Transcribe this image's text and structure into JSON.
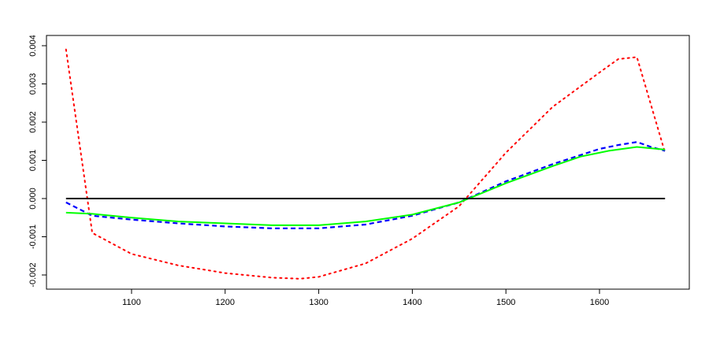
{
  "chart_data": {
    "type": "line",
    "title": "",
    "xlabel": "",
    "ylabel": "",
    "xlim": [
      1030,
      1670
    ],
    "ylim": [
      -0.0022,
      0.004
    ],
    "xticks": [
      1100,
      1200,
      1300,
      1400,
      1500,
      1600
    ],
    "xtick_labels": [
      "1100",
      "1200",
      "1300",
      "1400",
      "1500",
      "1600"
    ],
    "yticks": [
      -0.002,
      -0.001,
      0.0,
      0.001,
      0.002,
      0.003,
      0.004
    ],
    "ytick_labels": [
      "-0.002",
      "-0.001",
      "0.000",
      "0.001",
      "0.002",
      "0.003",
      "0.004"
    ],
    "grid": false,
    "legend": "none",
    "series": [
      {
        "color": "#ff0000",
        "style": "dotted",
        "x": [
          1030,
          1058,
          1100,
          1150,
          1200,
          1250,
          1280,
          1300,
          1350,
          1400,
          1450,
          1500,
          1550,
          1600,
          1620,
          1640,
          1670
        ],
        "y": [
          0.0039,
          -0.0009,
          -0.00145,
          -0.00175,
          -0.00195,
          -0.00207,
          -0.0021,
          -0.00205,
          -0.0017,
          -0.00105,
          -0.0002,
          0.0012,
          0.0024,
          0.0033,
          0.00365,
          0.0037,
          0.0012
        ]
      },
      {
        "color": "#0000ff",
        "style": "dashed",
        "x": [
          1030,
          1058,
          1100,
          1150,
          1200,
          1250,
          1300,
          1350,
          1400,
          1450,
          1500,
          1550,
          1600,
          1620,
          1640,
          1655,
          1670
        ],
        "y": [
          -0.0001,
          -0.00045,
          -0.00055,
          -0.00065,
          -0.00073,
          -0.00078,
          -0.00078,
          -0.00068,
          -0.00045,
          -0.0001,
          0.00045,
          0.0009,
          0.0013,
          0.0014,
          0.00148,
          0.00135,
          0.00125
        ]
      },
      {
        "color": "#00ff00",
        "style": "solid",
        "x": [
          1030,
          1058,
          1100,
          1150,
          1200,
          1250,
          1300,
          1350,
          1400,
          1450,
          1500,
          1550,
          1580,
          1610,
          1640,
          1670
        ],
        "y": [
          -0.00037,
          -0.0004,
          -0.0005,
          -0.0006,
          -0.00065,
          -0.0007,
          -0.0007,
          -0.0006,
          -0.00042,
          -0.0001,
          0.0004,
          0.00085,
          0.0011,
          0.00125,
          0.00135,
          0.00128
        ]
      },
      {
        "color": "#000000",
        "style": "solid",
        "x": [
          1030,
          1670
        ],
        "y": [
          0.0,
          0.0
        ]
      }
    ]
  }
}
